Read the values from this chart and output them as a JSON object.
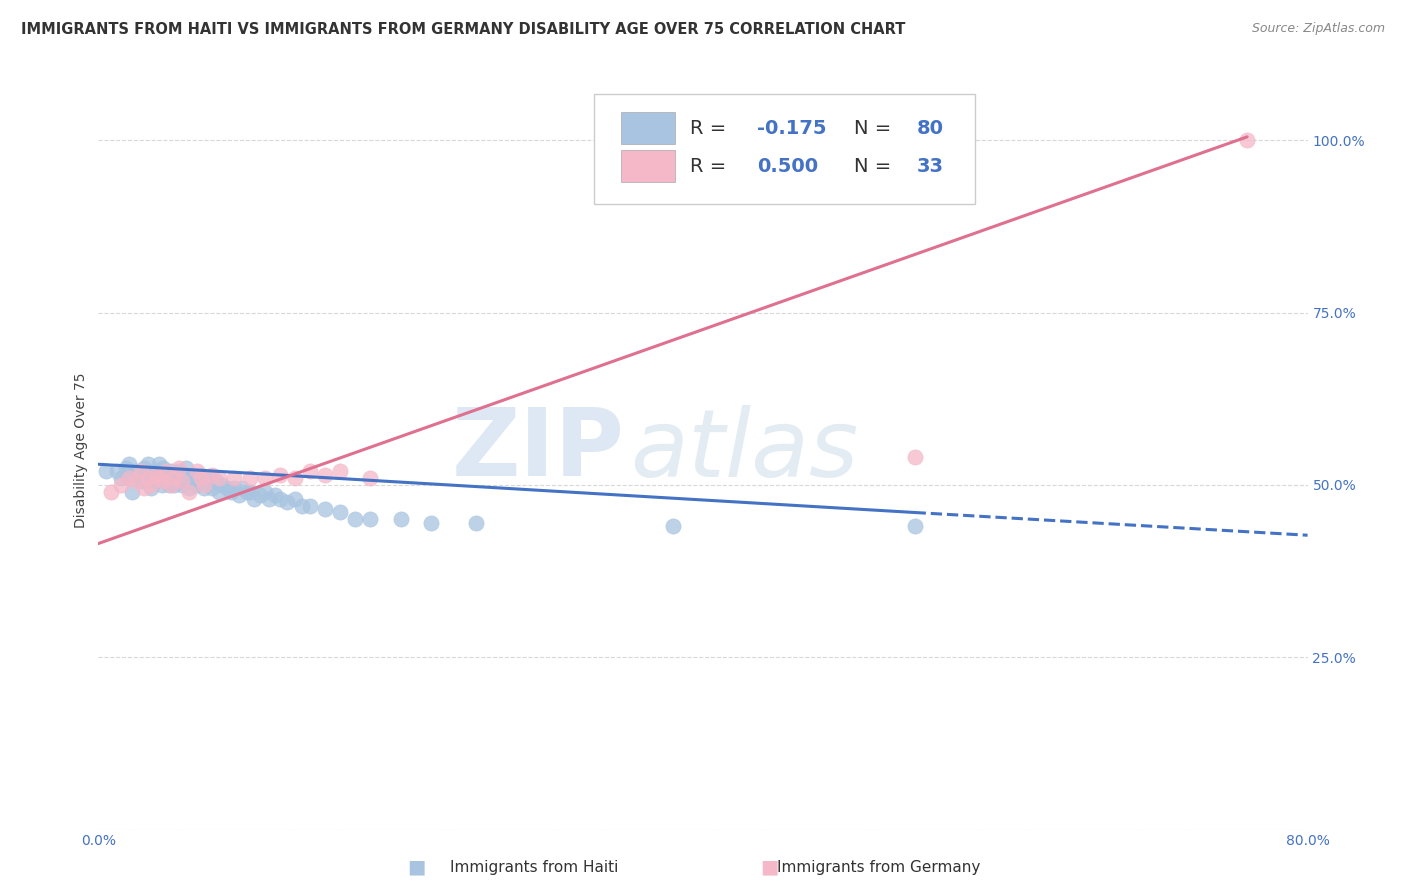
{
  "title": "IMMIGRANTS FROM HAITI VS IMMIGRANTS FROM GERMANY DISABILITY AGE OVER 75 CORRELATION CHART",
  "source": "Source: ZipAtlas.com",
  "ylabel": "Disability Age Over 75",
  "xmin": 0.0,
  "xmax": 0.8,
  "ymin": 0.0,
  "ymax": 1.1,
  "x_ticks": [
    0.0,
    0.1,
    0.2,
    0.3,
    0.4,
    0.5,
    0.6,
    0.7,
    0.8
  ],
  "y_ticks": [
    0.0,
    0.25,
    0.5,
    0.75,
    1.0
  ],
  "y_tick_labels_right": [
    "",
    "25.0%",
    "50.0%",
    "75.0%",
    "100.0%"
  ],
  "haiti_color": "#a8c4e0",
  "haiti_line_color": "#4472c4",
  "germany_color": "#f4b8c8",
  "germany_line_color": "#e07090",
  "haiti_R": "-0.175",
  "haiti_N": "80",
  "germany_R": "0.500",
  "germany_N": "33",
  "haiti_scatter_x": [
    0.005,
    0.012,
    0.015,
    0.018,
    0.02,
    0.02,
    0.022,
    0.025,
    0.027,
    0.028,
    0.03,
    0.03,
    0.032,
    0.033,
    0.033,
    0.035,
    0.035,
    0.037,
    0.038,
    0.038,
    0.04,
    0.04,
    0.042,
    0.043,
    0.043,
    0.045,
    0.045,
    0.047,
    0.048,
    0.048,
    0.05,
    0.05,
    0.052,
    0.053,
    0.053,
    0.055,
    0.055,
    0.057,
    0.058,
    0.058,
    0.06,
    0.06,
    0.062,
    0.063,
    0.065,
    0.067,
    0.068,
    0.07,
    0.072,
    0.073,
    0.075,
    0.078,
    0.08,
    0.082,
    0.085,
    0.088,
    0.09,
    0.093,
    0.095,
    0.098,
    0.1,
    0.103,
    0.107,
    0.11,
    0.113,
    0.117,
    0.12,
    0.125,
    0.13,
    0.135,
    0.14,
    0.15,
    0.16,
    0.17,
    0.18,
    0.2,
    0.22,
    0.25,
    0.38,
    0.54
  ],
  "haiti_scatter_y": [
    0.52,
    0.52,
    0.51,
    0.525,
    0.51,
    0.53,
    0.49,
    0.52,
    0.515,
    0.505,
    0.505,
    0.525,
    0.51,
    0.515,
    0.53,
    0.495,
    0.515,
    0.51,
    0.505,
    0.52,
    0.515,
    0.53,
    0.5,
    0.51,
    0.525,
    0.505,
    0.515,
    0.5,
    0.51,
    0.52,
    0.5,
    0.515,
    0.51,
    0.505,
    0.52,
    0.5,
    0.51,
    0.505,
    0.515,
    0.525,
    0.495,
    0.505,
    0.51,
    0.515,
    0.5,
    0.505,
    0.515,
    0.495,
    0.505,
    0.51,
    0.495,
    0.505,
    0.49,
    0.5,
    0.495,
    0.49,
    0.495,
    0.485,
    0.495,
    0.49,
    0.49,
    0.48,
    0.485,
    0.49,
    0.48,
    0.485,
    0.48,
    0.475,
    0.48,
    0.47,
    0.47,
    0.465,
    0.46,
    0.45,
    0.45,
    0.45,
    0.445,
    0.445,
    0.44,
    0.44
  ],
  "germany_scatter_x": [
    0.008,
    0.015,
    0.02,
    0.025,
    0.028,
    0.03,
    0.033,
    0.035,
    0.038,
    0.04,
    0.043,
    0.045,
    0.048,
    0.05,
    0.053,
    0.055,
    0.06,
    0.065,
    0.068,
    0.07,
    0.075,
    0.08,
    0.09,
    0.1,
    0.11,
    0.12,
    0.13,
    0.14,
    0.15,
    0.16,
    0.18,
    0.54,
    0.76
  ],
  "germany_scatter_y": [
    0.49,
    0.5,
    0.51,
    0.505,
    0.52,
    0.495,
    0.51,
    0.5,
    0.515,
    0.51,
    0.505,
    0.52,
    0.5,
    0.51,
    0.525,
    0.505,
    0.49,
    0.52,
    0.51,
    0.5,
    0.515,
    0.51,
    0.51,
    0.51,
    0.51,
    0.515,
    0.51,
    0.52,
    0.515,
    0.52,
    0.51,
    0.54,
    1.0
  ],
  "haiti_line_x0": 0.0,
  "haiti_line_x1": 0.54,
  "haiti_line_x2": 0.8,
  "haiti_line_y0": 0.53,
  "haiti_line_y1": 0.46,
  "haiti_line_y2": 0.427,
  "germany_line_x0": 0.0,
  "germany_line_x1": 0.76,
  "germany_line_y0": 0.415,
  "germany_line_y1": 1.005,
  "watermark_zip": "ZIP",
  "watermark_atlas": "atlas",
  "background_color": "#ffffff",
  "grid_color": "#d8d8d8",
  "title_fontsize": 10.5,
  "axis_label_fontsize": 10,
  "tick_fontsize": 10,
  "legend_fontsize": 14,
  "legend_color_R": "#333333",
  "legend_color_val": "#4472c4"
}
